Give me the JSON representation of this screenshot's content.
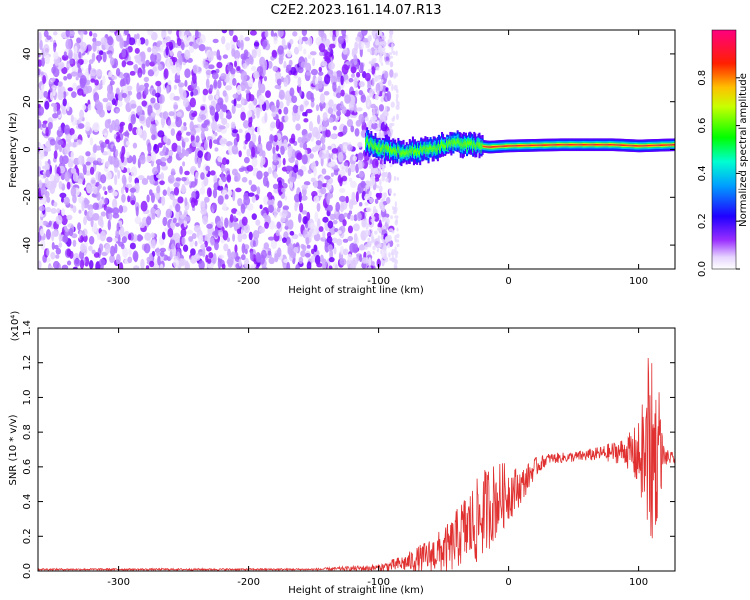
{
  "title": "C2E2.2023.161.14.07.R13",
  "chart_data": [
    {
      "type": "heatmap",
      "xlabel": "Height of straight line (km)",
      "ylabel": "Frequency (Hz)",
      "xlim": [
        -362,
        128
      ],
      "ylim": [
        -50,
        50
      ],
      "xticks": [
        -300,
        -200,
        -100,
        0,
        100
      ],
      "xtick_labels": [
        "-300",
        "-200",
        "-100",
        "0",
        "100"
      ],
      "yticks": [
        -40,
        -20,
        0,
        20,
        40
      ],
      "ytick_labels": [
        "-40",
        "-20",
        "0",
        "20",
        "40"
      ],
      "colorbar": {
        "label": "Normalized spectral amplitude",
        "range": [
          0,
          1
        ],
        "ticks": [
          0.0,
          0.2,
          0.4,
          0.6,
          0.8
        ],
        "tick_labels": [
          "0.0",
          "0.2",
          "0.4",
          "0.6",
          "0.8"
        ],
        "colormap": [
          "#ffffff",
          "#e8d8ff",
          "#8800ff",
          "#0000ff",
          "#00ffff",
          "#00ff00",
          "#ffff00",
          "#ff0000",
          "#ff0088"
        ]
      },
      "noise_region_x": [
        -362,
        -100
      ],
      "signal_band": {
        "x_start": -110,
        "x_end": 128,
        "frequency_track": [
          [
            -110,
            3
          ],
          [
            -95,
            0
          ],
          [
            -80,
            -1
          ],
          [
            -60,
            0
          ],
          [
            -45,
            3
          ],
          [
            -30,
            2
          ],
          [
            -15,
            1
          ],
          [
            0,
            1.5
          ],
          [
            40,
            2
          ],
          [
            80,
            2
          ],
          [
            100,
            1.5
          ],
          [
            128,
            2
          ]
        ]
      },
      "grid": false
    },
    {
      "type": "line",
      "xlabel": "Height of straight line (km)",
      "ylabel": "SNR (10 * v/v)",
      "multiplier": "(x10⁴)",
      "xlim": [
        -362,
        128
      ],
      "ylim": [
        0,
        1.4
      ],
      "xticks": [
        -300,
        -200,
        -100,
        0,
        100
      ],
      "xtick_labels": [
        "-300",
        "-200",
        "-100",
        "0",
        "100"
      ],
      "yticks": [
        0.0,
        0.2,
        0.4,
        0.6,
        0.8,
        1.0,
        1.2,
        1.4
      ],
      "ytick_labels": [
        "0.0",
        "0.2",
        "0.4",
        "0.6",
        "0.8",
        "1.0",
        "1.2",
        "1.4"
      ],
      "color": "#e03030",
      "series": [
        {
          "envelope_x": [
            -362,
            -150,
            -100,
            -80,
            -60,
            -45,
            -35,
            -25,
            -15,
            -5,
            10,
            20,
            30,
            50,
            70,
            90,
            100,
            105,
            110,
            115,
            120,
            128
          ],
          "envelope_y": [
            0.01,
            0.01,
            0.02,
            0.05,
            0.1,
            0.15,
            0.25,
            0.3,
            0.4,
            0.45,
            0.5,
            0.6,
            0.65,
            0.66,
            0.68,
            0.7,
            0.68,
            0.7,
            0.72,
            0.7,
            0.66,
            0.65
          ],
          "spread_y": [
            0.005,
            0.005,
            0.02,
            0.05,
            0.1,
            0.15,
            0.2,
            0.25,
            0.25,
            0.2,
            0.1,
            0.06,
            0.03,
            0.03,
            0.04,
            0.08,
            0.2,
            0.4,
            0.55,
            0.35,
            0.05,
            0.03
          ]
        }
      ],
      "grid": false
    }
  ]
}
